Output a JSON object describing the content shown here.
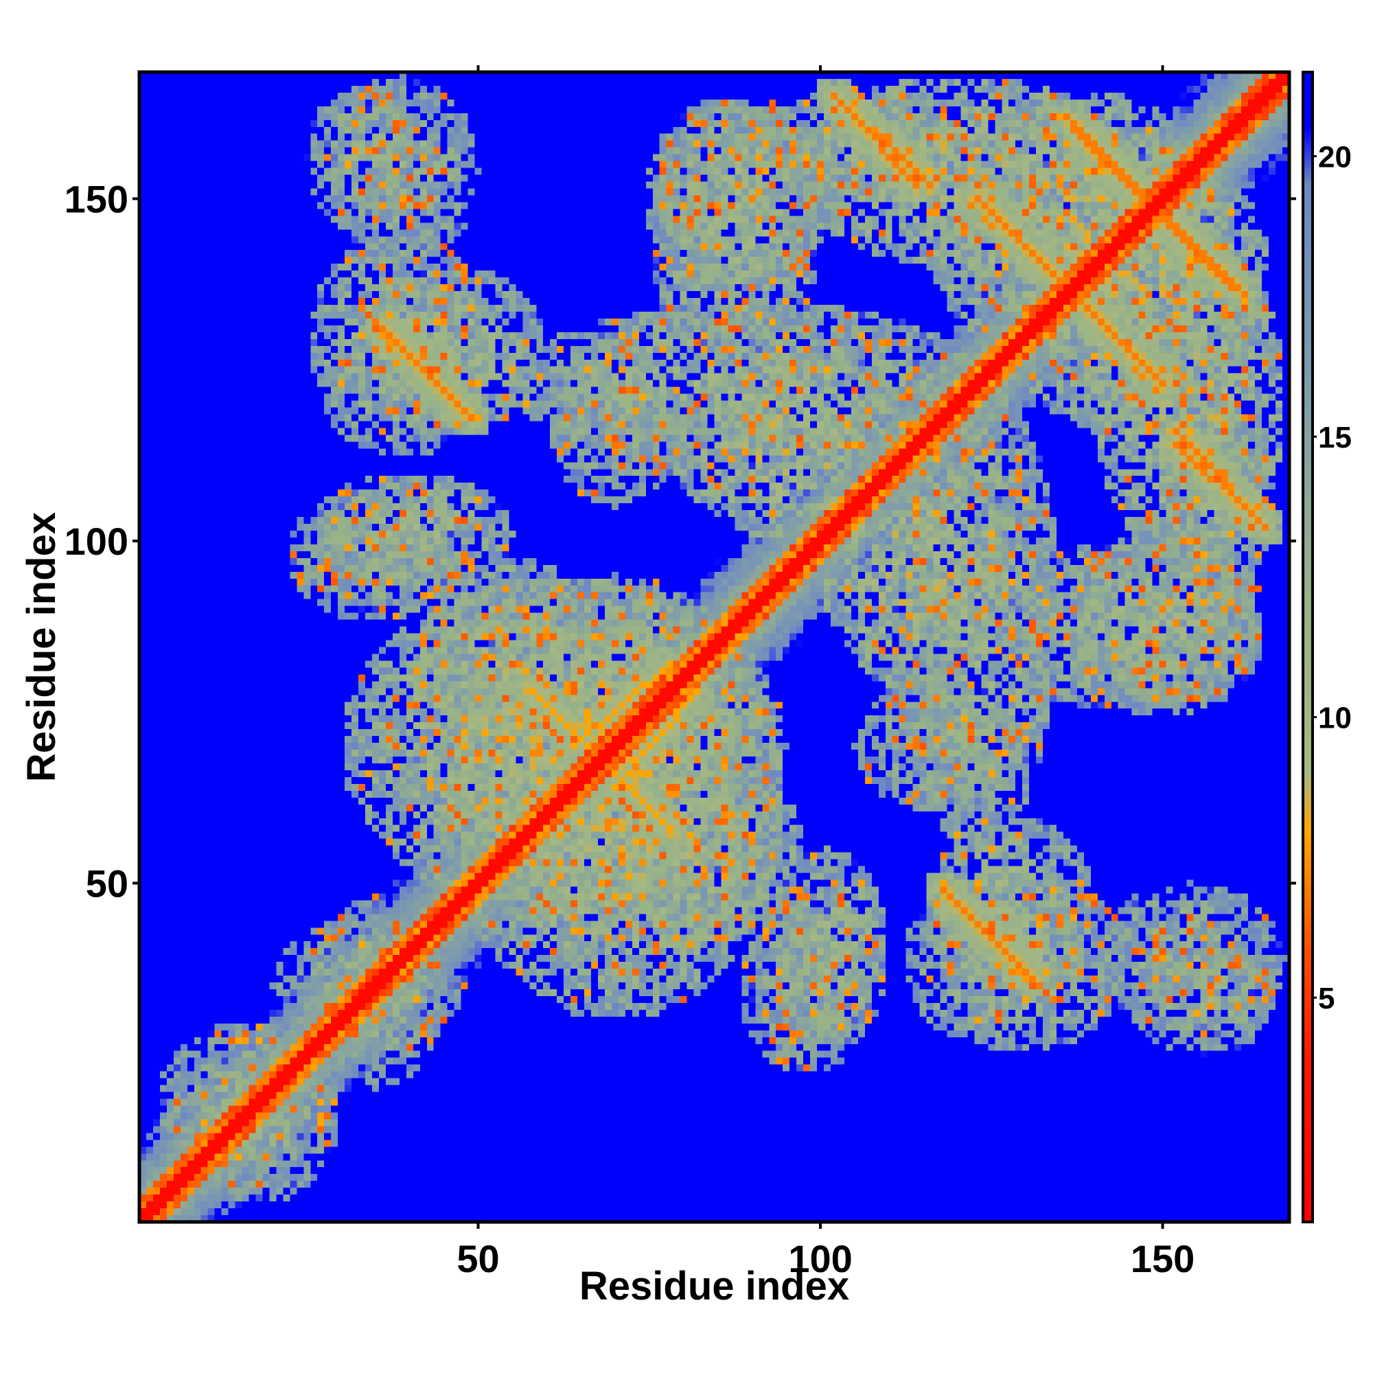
{
  "chart_data": {
    "type": "heatmap",
    "title": "",
    "xlabel": "Residue index",
    "ylabel": "Residue index",
    "xlim": [
      1,
      168
    ],
    "ylim": [
      1,
      168
    ],
    "x_ticks": [
      50,
      100,
      150
    ],
    "y_ticks": [
      50,
      100,
      150
    ],
    "colorbar": {
      "ticks": [
        5,
        10,
        15,
        20
      ],
      "range": [
        1,
        21.5
      ],
      "stops": [
        {
          "value": 1,
          "color": "#ff0000"
        },
        {
          "value": 4,
          "color": "#ff1a00"
        },
        {
          "value": 6,
          "color": "#ff5500"
        },
        {
          "value": 8,
          "color": "#ffa500"
        },
        {
          "value": 9,
          "color": "#a8b882"
        },
        {
          "value": 12,
          "color": "#98b288"
        },
        {
          "value": 16,
          "color": "#7f9cac"
        },
        {
          "value": 19.5,
          "color": "#6e88c4"
        },
        {
          "value": 20.5,
          "color": "#0000ff"
        },
        {
          "value": 21.5,
          "color": "#0000ff"
        }
      ]
    },
    "background_color": "#0000ff",
    "diagonal_band": [
      [
        1,
        1
      ],
      [
        168,
        168
      ]
    ],
    "contact_segments": [
      {
        "from": [
          36,
          131
        ],
        "to": [
          48,
          119
        ],
        "value": 7
      },
      {
        "from": [
          102,
          165
        ],
        "to": [
          116,
          152
        ],
        "value": 7
      },
      {
        "from": [
          123,
          150
        ],
        "to": [
          135,
          138
        ],
        "value": 7
      },
      {
        "from": [
          137,
          160
        ],
        "to": [
          150,
          147
        ],
        "value": 7
      },
      {
        "from": [
          150,
          148
        ],
        "to": [
          162,
          136
        ],
        "value": 7
      },
      {
        "from": [
          138,
          135
        ],
        "to": [
          147,
          126
        ],
        "value": 7
      },
      {
        "from": [
          152,
          114
        ],
        "to": [
          163,
          104
        ],
        "value": 7
      },
      {
        "from": [
          118,
          49
        ],
        "to": [
          131,
          36
        ],
        "value": 7
      },
      {
        "from": [
          58,
          78
        ],
        "to": [
          72,
          64
        ],
        "value": 8
      },
      {
        "from": [
          64,
          70
        ],
        "to": [
          78,
          82
        ],
        "value": 8
      }
    ],
    "contact_regions": [
      {
        "x": [
          25,
          42
        ],
        "y": [
          145,
          167
        ],
        "value": 14
      },
      {
        "x": [
          34,
          60
        ],
        "y": [
          116,
          140
        ],
        "value": 13
      },
      {
        "x": [
          25,
          55
        ],
        "y": [
          92,
          110
        ],
        "value": 13
      },
      {
        "x": [
          40,
          70
        ],
        "y": [
          52,
          98
        ],
        "value": 12
      },
      {
        "x": [
          45,
          95
        ],
        "y": [
          30,
          95
        ],
        "value": 12
      },
      {
        "x": [
          55,
          125
        ],
        "y": [
          110,
          135
        ],
        "value": 13
      },
      {
        "x": [
          74,
          102
        ],
        "y": [
          136,
          165
        ],
        "value": 13
      },
      {
        "x": [
          90,
          120
        ],
        "y": [
          150,
          166
        ],
        "value": 13
      },
      {
        "x": [
          115,
          160
        ],
        "y": [
          125,
          166
        ],
        "value": 12
      },
      {
        "x": [
          140,
          168
        ],
        "y": [
          96,
          145
        ],
        "value": 12
      },
      {
        "x": [
          100,
          128
        ],
        "y": [
          78,
          115
        ],
        "value": 12
      },
      {
        "x": [
          105,
          130
        ],
        "y": [
          60,
          80
        ],
        "value": 14
      },
      {
        "x": [
          88,
          108
        ],
        "y": [
          22,
          50
        ],
        "value": 14
      },
      {
        "x": [
          112,
          145
        ],
        "y": [
          25,
          52
        ],
        "value": 13
      },
      {
        "x": [
          140,
          168
        ],
        "y": [
          28,
          50
        ],
        "value": 14
      },
      {
        "x": [
          125,
          165
        ],
        "y": [
          75,
          100
        ],
        "value": 13
      },
      {
        "x": [
          25,
          45
        ],
        "y": [
          20,
          48
        ],
        "value": 14
      },
      {
        "x": [
          5,
          30
        ],
        "y": [
          3,
          30
        ],
        "value": 14
      }
    ]
  }
}
